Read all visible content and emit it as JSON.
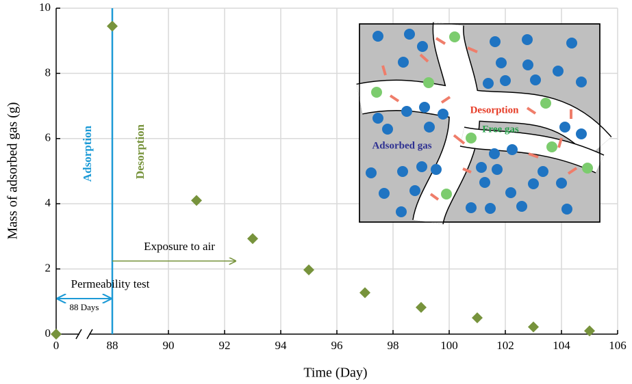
{
  "chart_data": {
    "type": "scatter",
    "x_label": "Time (Day)",
    "y_label": "Mass of adsorbed gas (g)",
    "x": [
      0,
      88,
      91,
      93,
      95,
      97,
      99,
      101,
      103,
      105
    ],
    "values": [
      0,
      9.45,
      4.1,
      2.93,
      1.97,
      1.27,
      0.82,
      0.5,
      0.22,
      0.1
    ],
    "color": "#77933c",
    "marker": "diamond",
    "xlim": [
      0,
      106
    ],
    "xticks": [
      0,
      88,
      90,
      92,
      94,
      96,
      98,
      100,
      102,
      104,
      106
    ],
    "xbreak": true,
    "ylim": [
      0,
      10
    ],
    "yticks": [
      0,
      2,
      4,
      6,
      8,
      10
    ],
    "grid": true,
    "vline": 88,
    "annotations": {
      "adsorption": "Adsorption",
      "desorption": "Desorption",
      "exposure": "Exposure to air",
      "permeability": "Permeability test",
      "days": "88 Days"
    },
    "inset": {
      "desorption": "Desorption",
      "free_gas": "Free gas",
      "adsorbed_gas": "Adsorbed gas"
    }
  }
}
